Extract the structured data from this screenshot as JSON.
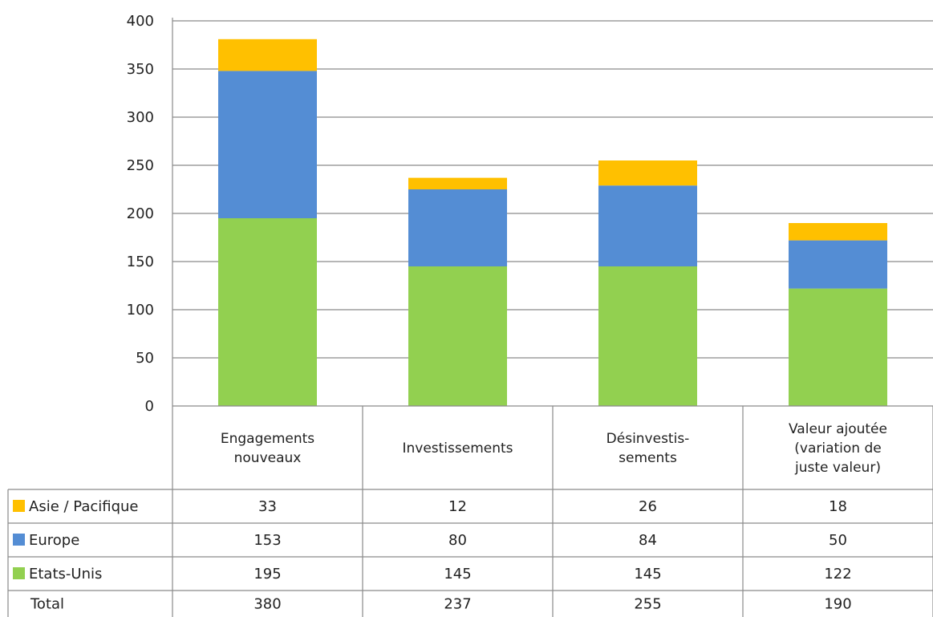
{
  "chart_data": {
    "type": "bar",
    "stacked": true,
    "categories": [
      [
        "Engagements",
        "nouveaux"
      ],
      [
        "Investissements"
      ],
      [
        "Désinvestis-",
        "sements"
      ],
      [
        "Valeur ajoutée",
        "(variation de",
        "juste valeur)"
      ]
    ],
    "series": [
      {
        "name": "Etats-Unis",
        "color": "#92d050",
        "values": [
          195,
          145,
          145,
          122
        ]
      },
      {
        "name": "Europe",
        "color": "#548dd4",
        "values": [
          153,
          80,
          84,
          50
        ]
      },
      {
        "name": "Asie / Pacifique",
        "color": "#ffc000",
        "values": [
          33,
          12,
          26,
          18
        ]
      }
    ],
    "table_rows": [
      {
        "series_index": 2,
        "label": "Asie / Pacifique",
        "values": [
          "33",
          "12",
          "26",
          "18"
        ]
      },
      {
        "series_index": 1,
        "label": "Europe",
        "values": [
          "153",
          "80",
          "84",
          "50"
        ]
      },
      {
        "series_index": 0,
        "label": "Etats-Unis",
        "values": [
          "195",
          "145",
          "145",
          "122"
        ]
      },
      {
        "series_index": null,
        "label": "Total",
        "values": [
          "380",
          "237",
          "255",
          "190"
        ]
      }
    ],
    "ylim": [
      0,
      400
    ],
    "yticks": [
      "0",
      "50",
      "100",
      "150",
      "200",
      "250",
      "300",
      "350",
      "400"
    ],
    "ytick_values": [
      0,
      50,
      100,
      150,
      200,
      250,
      300,
      350,
      400
    ],
    "grid": true,
    "legend": "data-table"
  }
}
